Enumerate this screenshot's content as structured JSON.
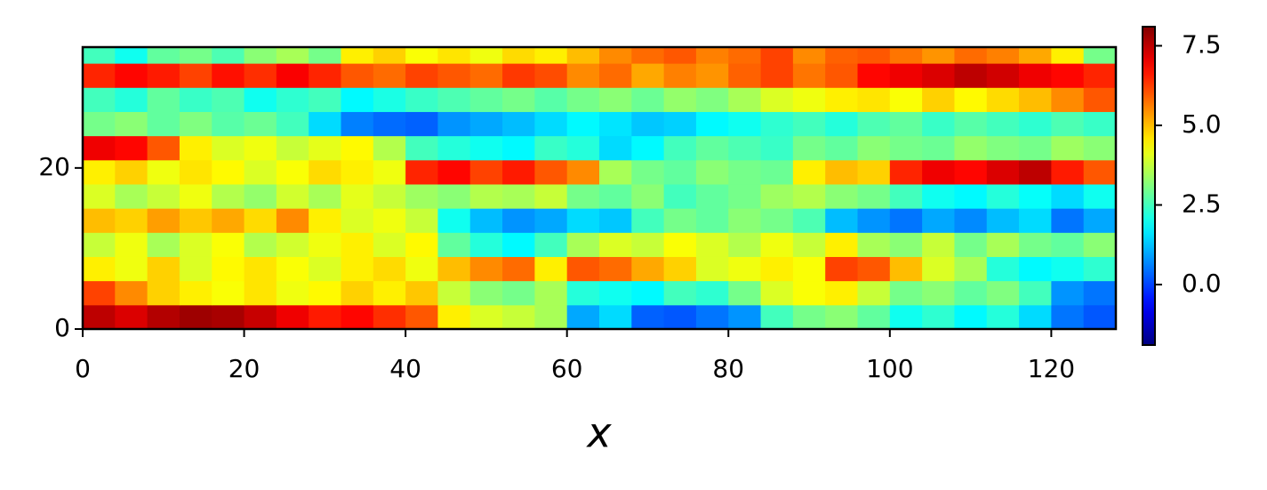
{
  "chart_data": {
    "type": "heatmap",
    "xlabel": "x",
    "colormap": "jet",
    "xlim": [
      0,
      128
    ],
    "ylim": [
      0,
      35
    ],
    "xticks": [
      0,
      20,
      40,
      60,
      80,
      100,
      120
    ],
    "yticks": [
      0,
      20
    ],
    "clim": [
      -1.9,
      8.1
    ],
    "colorbar_ticks": [
      {
        "value": 0,
        "label": "0.0"
      },
      2.5,
      {
        "value": 5,
        "label": "5.0"
      },
      7.5
    ],
    "x_edges": [
      0,
      4,
      8,
      12,
      16,
      20,
      24,
      28,
      32,
      36,
      40,
      44,
      48,
      52,
      56,
      60,
      64,
      68,
      72,
      76,
      80,
      84,
      88,
      92,
      96,
      100,
      104,
      108,
      112,
      116,
      120,
      124,
      128
    ],
    "y_edges": [
      0,
      3,
      6,
      9,
      12,
      15,
      18,
      21,
      24,
      27,
      30,
      33,
      35
    ],
    "z": [
      [
        7.5,
        7.2,
        7.6,
        7.8,
        7.7,
        7.4,
        7.0,
        6.6,
        6.8,
        6.4,
        6.0,
        4.5,
        4.0,
        3.8,
        3.5,
        1.0,
        1.5,
        0.3,
        0.2,
        0.5,
        0.8,
        2.5,
        3.0,
        3.2,
        2.8,
        2.0,
        2.3,
        1.8,
        2.2,
        1.5,
        0.5,
        0.2
      ],
      [
        6.2,
        5.5,
        4.8,
        4.5,
        4.3,
        4.6,
        4.2,
        4.4,
        4.8,
        4.5,
        4.9,
        3.8,
        3.2,
        3.0,
        3.5,
        2.2,
        2.0,
        1.8,
        2.5,
        2.3,
        3.0,
        4.0,
        4.3,
        4.5,
        3.8,
        3.0,
        3.2,
        2.8,
        3.1,
        2.5,
        0.8,
        0.5
      ],
      [
        4.5,
        4.2,
        4.8,
        4.0,
        4.4,
        4.6,
        4.3,
        4.0,
        4.5,
        4.7,
        4.2,
        5.0,
        5.5,
        5.8,
        4.5,
        6.0,
        5.8,
        5.2,
        4.8,
        4.0,
        4.2,
        4.5,
        4.3,
        6.2,
        6.0,
        5.0,
        4.0,
        3.5,
        2.2,
        1.8,
        2.0,
        2.3
      ],
      [
        3.8,
        4.2,
        3.5,
        4.0,
        4.3,
        3.6,
        3.9,
        4.2,
        4.5,
        4.0,
        4.4,
        2.8,
        2.2,
        1.8,
        2.5,
        3.5,
        4.0,
        3.8,
        4.3,
        4.0,
        3.6,
        4.2,
        3.8,
        4.5,
        3.5,
        3.2,
        3.8,
        3.0,
        3.5,
        3.0,
        2.8,
        3.2
      ],
      [
        5.0,
        4.8,
        5.3,
        4.9,
        5.2,
        4.7,
        5.5,
        4.5,
        4.0,
        4.2,
        3.8,
        2.0,
        1.2,
        0.8,
        1.0,
        1.5,
        1.3,
        2.5,
        3.0,
        2.8,
        3.2,
        3.0,
        2.6,
        1.2,
        0.8,
        0.5,
        1.0,
        0.7,
        1.2,
        1.5,
        0.5,
        1.0
      ],
      [
        4.0,
        3.5,
        3.8,
        4.2,
        3.6,
        3.3,
        3.9,
        3.5,
        4.1,
        3.8,
        3.4,
        3.2,
        3.6,
        3.5,
        3.8,
        3.0,
        2.8,
        3.2,
        2.5,
        2.8,
        3.0,
        3.4,
        3.6,
        3.2,
        3.0,
        2.5,
        2.0,
        1.8,
        2.2,
        1.9,
        1.5,
        2.0
      ],
      [
        4.5,
        4.8,
        4.2,
        4.6,
        4.4,
        4.0,
        4.3,
        4.7,
        4.5,
        4.2,
        6.5,
        6.8,
        6.2,
        6.6,
        6.0,
        5.5,
        3.5,
        3.0,
        2.8,
        3.2,
        3.0,
        2.9,
        4.5,
        5.0,
        4.8,
        6.5,
        7.0,
        6.8,
        7.2,
        7.5,
        6.6,
        6.0
      ],
      [
        7.0,
        6.8,
        6.0,
        4.5,
        4.0,
        4.2,
        3.8,
        4.1,
        4.4,
        3.6,
        2.5,
        2.2,
        2.0,
        1.8,
        2.4,
        2.2,
        1.5,
        1.8,
        2.5,
        2.8,
        2.6,
        2.4,
        3.0,
        2.8,
        3.2,
        3.0,
        2.9,
        3.3,
        3.1,
        3.0,
        3.4,
        3.2
      ],
      [
        3.0,
        3.2,
        2.8,
        3.1,
        2.7,
        2.9,
        2.5,
        1.5,
        0.6,
        0.4,
        0.3,
        0.8,
        1.0,
        1.2,
        1.5,
        1.8,
        1.6,
        1.3,
        1.4,
        1.8,
        2.0,
        2.3,
        2.5,
        2.2,
        2.6,
        2.8,
        2.4,
        2.7,
        2.5,
        2.3,
        2.6,
        2.4
      ],
      [
        2.5,
        2.2,
        2.8,
        2.4,
        2.6,
        2.0,
        2.3,
        2.5,
        1.8,
        2.1,
        2.4,
        2.6,
        2.8,
        3.0,
        2.7,
        3.0,
        3.2,
        2.9,
        3.3,
        3.1,
        3.5,
        4.0,
        4.2,
        4.5,
        4.6,
        4.3,
        4.8,
        4.4,
        4.7,
        5.0,
        5.5,
        6.0
      ],
      [
        6.5,
        6.8,
        6.6,
        6.2,
        6.7,
        6.4,
        6.9,
        6.5,
        6.0,
        5.8,
        6.2,
        6.0,
        5.8,
        6.3,
        6.1,
        5.5,
        5.8,
        5.2,
        5.6,
        5.4,
        5.9,
        6.2,
        5.7,
        6.0,
        6.8,
        7.0,
        7.2,
        7.5,
        7.3,
        7.0,
        6.8,
        6.5
      ],
      [
        2.5,
        2.0,
        2.8,
        3.0,
        2.6,
        3.2,
        3.5,
        3.0,
        4.5,
        4.8,
        4.3,
        4.6,
        4.2,
        4.7,
        4.5,
        5.0,
        5.5,
        5.8,
        6.0,
        5.6,
        5.8,
        6.2,
        5.5,
        5.9,
        6.0,
        5.7,
        5.4,
        5.8,
        5.6,
        5.2,
        4.5,
        3.0
      ]
    ]
  }
}
